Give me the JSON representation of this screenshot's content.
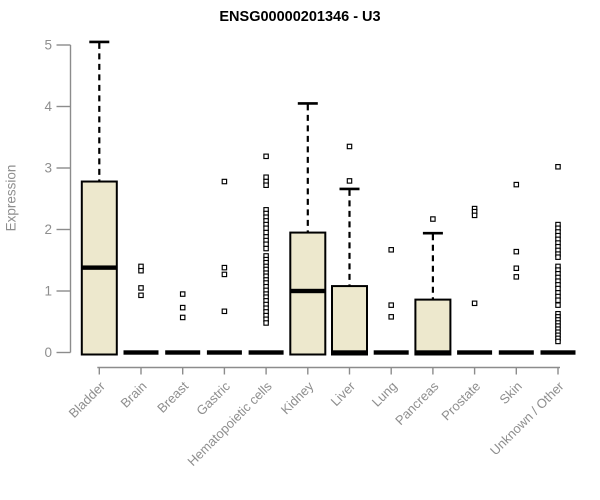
{
  "chart_data": {
    "type": "boxplot",
    "title": "ENSG00000201346 - U3",
    "ylabel": "Expression",
    "xlabel": "",
    "ylim": [
      0,
      5
    ],
    "yticks": [
      0,
      1,
      2,
      3,
      4,
      5
    ],
    "grid": false,
    "legend": "none",
    "colors": {
      "box_fill": "#EDE8CD",
      "box_border": "#000000",
      "median": "#000000",
      "whisker": "#000000",
      "outlier": "#000000",
      "axis": "#8C8C8C",
      "tick_label": "#8E8E8E",
      "title": "#000000",
      "background": "#FFFFFF"
    },
    "categories": [
      {
        "label": "Bladder",
        "q1": 0,
        "median": 1.38,
        "q3": 2.78,
        "whisker_low": 0,
        "whisker_high": 5.05,
        "outliers": []
      },
      {
        "label": "Brain",
        "q1": 0,
        "median": 0,
        "q3": 0,
        "whisker_low": 0,
        "whisker_high": 0,
        "outliers": [
          1.4,
          1.33,
          1.05,
          0.93
        ]
      },
      {
        "label": "Breast",
        "q1": 0,
        "median": 0,
        "q3": 0,
        "whisker_low": 0,
        "whisker_high": 0,
        "outliers": [
          0.95,
          0.73,
          0.57
        ]
      },
      {
        "label": "Gastric",
        "q1": 0,
        "median": 0,
        "q3": 0,
        "whisker_low": 0,
        "whisker_high": 0,
        "outliers": [
          2.78,
          1.38,
          1.27,
          0.67
        ]
      },
      {
        "label": "Hematopoietic cells",
        "q1": 0,
        "median": 0,
        "q3": 0,
        "whisker_low": 0,
        "whisker_high": 0,
        "outliers": [
          3.19,
          2.85,
          2.78,
          2.72,
          2.32,
          2.26,
          2.2,
          2.14,
          2.08,
          2.02,
          1.95,
          1.88,
          1.82,
          1.76,
          1.69,
          1.57,
          1.51,
          1.46,
          1.4,
          1.35,
          1.29,
          1.24,
          1.18,
          1.13,
          1.07,
          1.01,
          0.95,
          0.9,
          0.84,
          0.78,
          0.72,
          0.66,
          0.6,
          0.54,
          0.48
        ]
      },
      {
        "label": "Kidney",
        "q1": 0,
        "median": 1.0,
        "q3": 1.95,
        "whisker_low": 0,
        "whisker_high": 4.05,
        "outliers": []
      },
      {
        "label": "Liver",
        "q1": 0,
        "median": 0,
        "q3": 1.08,
        "whisker_low": 0,
        "whisker_high": 2.66,
        "outliers": [
          3.35,
          2.79
        ]
      },
      {
        "label": "Lung",
        "q1": 0,
        "median": 0,
        "q3": 0,
        "whisker_low": 0,
        "whisker_high": 0,
        "outliers": [
          1.67,
          0.77,
          0.58
        ]
      },
      {
        "label": "Pancreas",
        "q1": 0,
        "median": 0,
        "q3": 0.86,
        "whisker_low": 0,
        "whisker_high": 1.94,
        "outliers": [
          2.17
        ]
      },
      {
        "label": "Prostate",
        "q1": 0,
        "median": 0,
        "q3": 0,
        "whisker_low": 0,
        "whisker_high": 0,
        "outliers": [
          2.34,
          2.29,
          2.23,
          0.8
        ]
      },
      {
        "label": "Skin",
        "q1": 0,
        "median": 0,
        "q3": 0,
        "whisker_low": 0,
        "whisker_high": 0,
        "outliers": [
          2.73,
          1.64,
          1.37,
          1.23
        ]
      },
      {
        "label": "Unknown / Other",
        "q1": 0,
        "median": 0,
        "q3": 0,
        "whisker_low": 0,
        "whisker_high": 0,
        "outliers": [
          3.02,
          2.08,
          2.02,
          1.96,
          1.9,
          1.84,
          1.78,
          1.72,
          1.66,
          1.6,
          1.55,
          1.4,
          1.34,
          1.28,
          1.22,
          1.16,
          1.1,
          1.04,
          0.97,
          0.91,
          0.85,
          0.77,
          0.63,
          0.58,
          0.53,
          0.48,
          0.43,
          0.38,
          0.33,
          0.28,
          0.23,
          0.18
        ]
      }
    ]
  }
}
